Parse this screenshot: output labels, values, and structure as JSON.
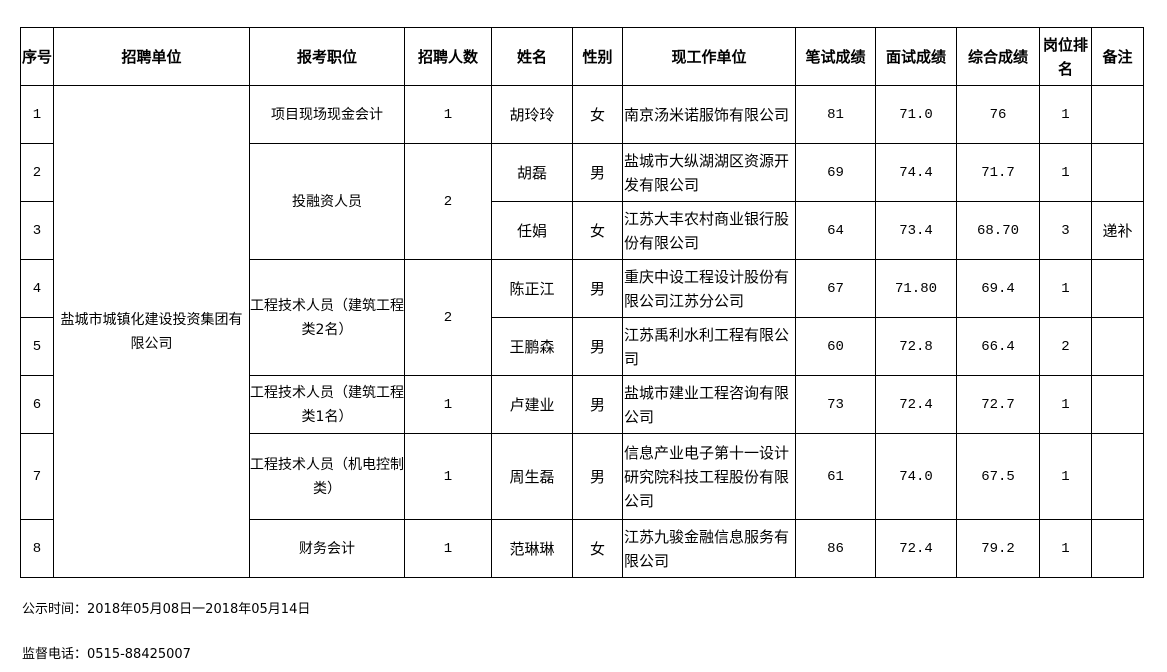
{
  "headers": {
    "seq": "序号",
    "unit": "招聘单位",
    "position": "报考职位",
    "quota": "招聘人数",
    "name": "姓名",
    "sex": "性别",
    "work": "现工作单位",
    "written": "笔试成绩",
    "interview": "面试成绩",
    "total": "综合成绩",
    "rank": "岗位排名",
    "note": "备注"
  },
  "unit": "盐城市城镇化建设投资集团有限公司",
  "positions": [
    {
      "label": "项目现场现金会计",
      "quota": "1"
    },
    {
      "label": "投融资人员",
      "quota": "2"
    },
    {
      "label": "工程技术人员（建筑工程类2名）",
      "quota": "2"
    },
    {
      "label": "工程技术人员（建筑工程类1名）",
      "quota": "1"
    },
    {
      "label": "工程技术人员（机电控制类）",
      "quota": "1"
    },
    {
      "label": "财务会计",
      "quota": "1"
    }
  ],
  "rows": [
    {
      "seq": "1",
      "name": "胡玲玲",
      "sex": "女",
      "work": "南京汤米诺服饰有限公司",
      "written": "81",
      "interview": "71.0",
      "total": "76",
      "rank": "1",
      "note": ""
    },
    {
      "seq": "2",
      "name": "胡磊",
      "sex": "男",
      "work": "盐城市大纵湖湖区资源开发有限公司",
      "written": "69",
      "interview": "74.4",
      "total": "71.7",
      "rank": "1",
      "note": ""
    },
    {
      "seq": "3",
      "name": "任娟",
      "sex": "女",
      "work": "江苏大丰农村商业银行股份有限公司",
      "written": "64",
      "interview": "73.4",
      "total": "68.70",
      "rank": "3",
      "note": "递补"
    },
    {
      "seq": "4",
      "name": "陈正江",
      "sex": "男",
      "work": "重庆中设工程设计股份有限公司江苏分公司",
      "written": "67",
      "interview": "71.80",
      "total": "69.4",
      "rank": "1",
      "note": ""
    },
    {
      "seq": "5",
      "name": "王鹏森",
      "sex": "男",
      "work": "江苏禹利水利工程有限公司",
      "written": "60",
      "interview": "72.8",
      "total": "66.4",
      "rank": "2",
      "note": ""
    },
    {
      "seq": "6",
      "name": "卢建业",
      "sex": "男",
      "work": "盐城市建业工程咨询有限公司",
      "written": "73",
      "interview": "72.4",
      "total": "72.7",
      "rank": "1",
      "note": ""
    },
    {
      "seq": "7",
      "name": "周生磊",
      "sex": "男",
      "work": "信息产业电子第十一设计研究院科技工程股份有限公司",
      "written": "61",
      "interview": "74.0",
      "total": "67.5",
      "rank": "1",
      "note": ""
    },
    {
      "seq": "8",
      "name": "范琳琳",
      "sex": "女",
      "work": "江苏九骏金融信息服务有限公司",
      "written": "86",
      "interview": "72.4",
      "total": "79.2",
      "rank": "1",
      "note": ""
    }
  ],
  "footer": {
    "period": "公示时间：2018年05月08日一2018年05月14日",
    "phone": "监督电话：0515-88425007"
  }
}
